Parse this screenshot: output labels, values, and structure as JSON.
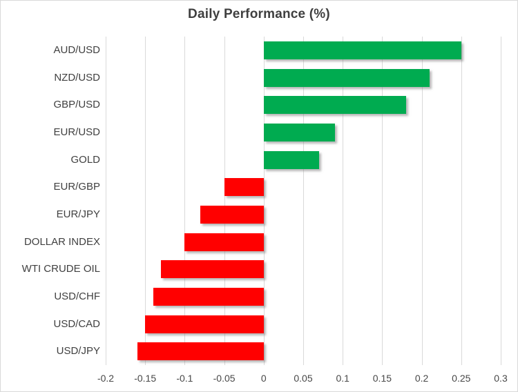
{
  "window": {
    "background": "#FFFFFF",
    "border_color": "#D9D9D9"
  },
  "chart_data": {
    "type": "bar",
    "orientation": "horizontal",
    "title": "Daily Performance (%)",
    "categories": [
      "AUD/USD",
      "NZD/USD",
      "GBP/USD",
      "EUR/USD",
      "GOLD",
      "EUR/GBP",
      "EUR/JPY",
      "DOLLAR INDEX",
      "WTI CRUDE OIL",
      "USD/CHF",
      "USD/CAD",
      "USD/JPY"
    ],
    "values": [
      0.25,
      0.21,
      0.18,
      0.09,
      0.07,
      -0.05,
      -0.08,
      -0.1,
      -0.13,
      -0.14,
      -0.15,
      -0.16
    ],
    "xlabel": "",
    "ylabel": "",
    "xlim": [
      -0.2,
      0.3
    ],
    "x_ticks": [
      -0.2,
      -0.15,
      -0.1,
      -0.05,
      0,
      0.05,
      0.1,
      0.15,
      0.2,
      0.25,
      0.3
    ],
    "x_tick_labels": [
      "-0.2",
      "-0.15",
      "-0.1",
      "-0.05",
      "0",
      "0.05",
      "0.1",
      "0.15",
      "0.2",
      "0.25",
      "0.3"
    ],
    "grid": "vertical-only",
    "legend": "none",
    "colors": {
      "positive_bar": "#00AB50",
      "negative_bar": "#FF0000",
      "gridline": "#D9D9D9",
      "title_text": "#3F3F3F",
      "axis_text": "#404040"
    }
  }
}
